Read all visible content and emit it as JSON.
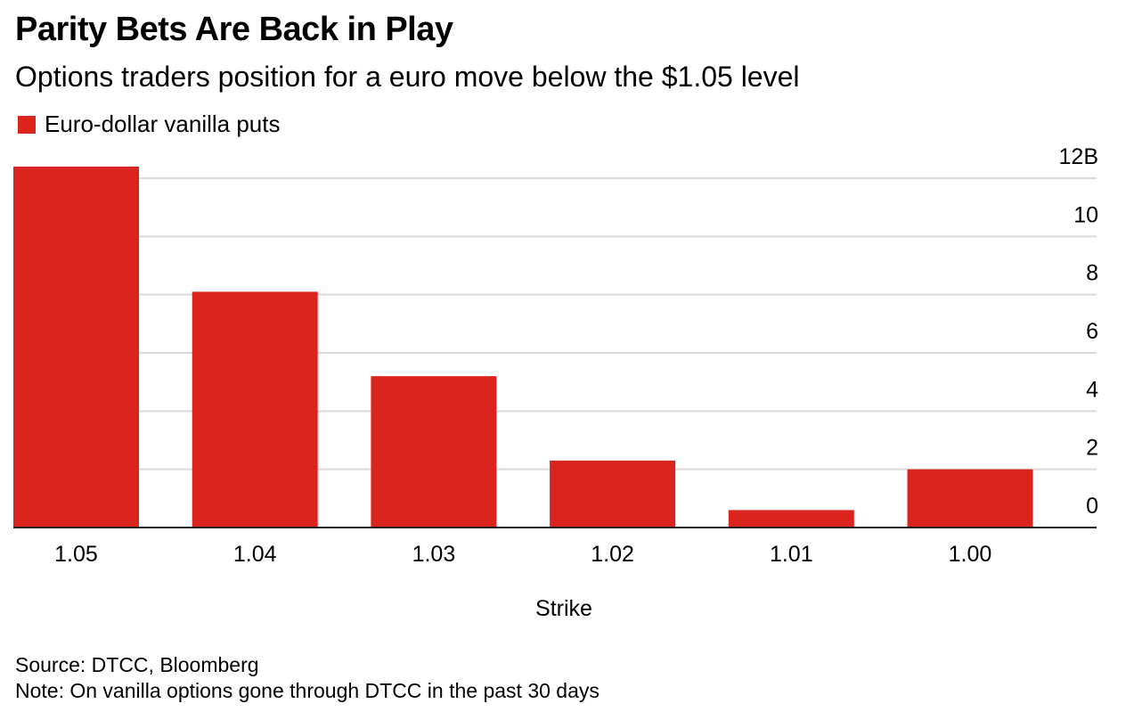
{
  "header": {
    "title": "Parity Bets Are Back in Play",
    "subtitle": "Options traders position for a euro move below the $1.05 level"
  },
  "footer": {
    "source": "Source: DTCC, Bloomberg",
    "note": "Note: On vanilla options gone through DTCC in the past 30 days"
  },
  "colors": {
    "bar": "#dc241f",
    "grid": "#d9d9d9",
    "axis": "#222222",
    "text": "#000000"
  },
  "chart_data": {
    "type": "bar",
    "categories": [
      "1.05",
      "1.04",
      "1.03",
      "1.02",
      "1.01",
      "1.00"
    ],
    "series": [
      {
        "name": "Euro-dollar vanilla puts",
        "values": [
          12.4,
          8.1,
          5.2,
          2.3,
          0.6,
          2.0
        ]
      }
    ],
    "xlabel": "Strike",
    "ylabel": "",
    "ylim": [
      0,
      12
    ],
    "yticks": [
      0,
      2,
      4,
      6,
      8,
      10,
      12
    ],
    "ytick_labels": [
      "0",
      "2",
      "4",
      "6",
      "8",
      "10",
      "12B"
    ],
    "y_axis_side": "right",
    "grid": true,
    "legend_position": "top-left"
  }
}
